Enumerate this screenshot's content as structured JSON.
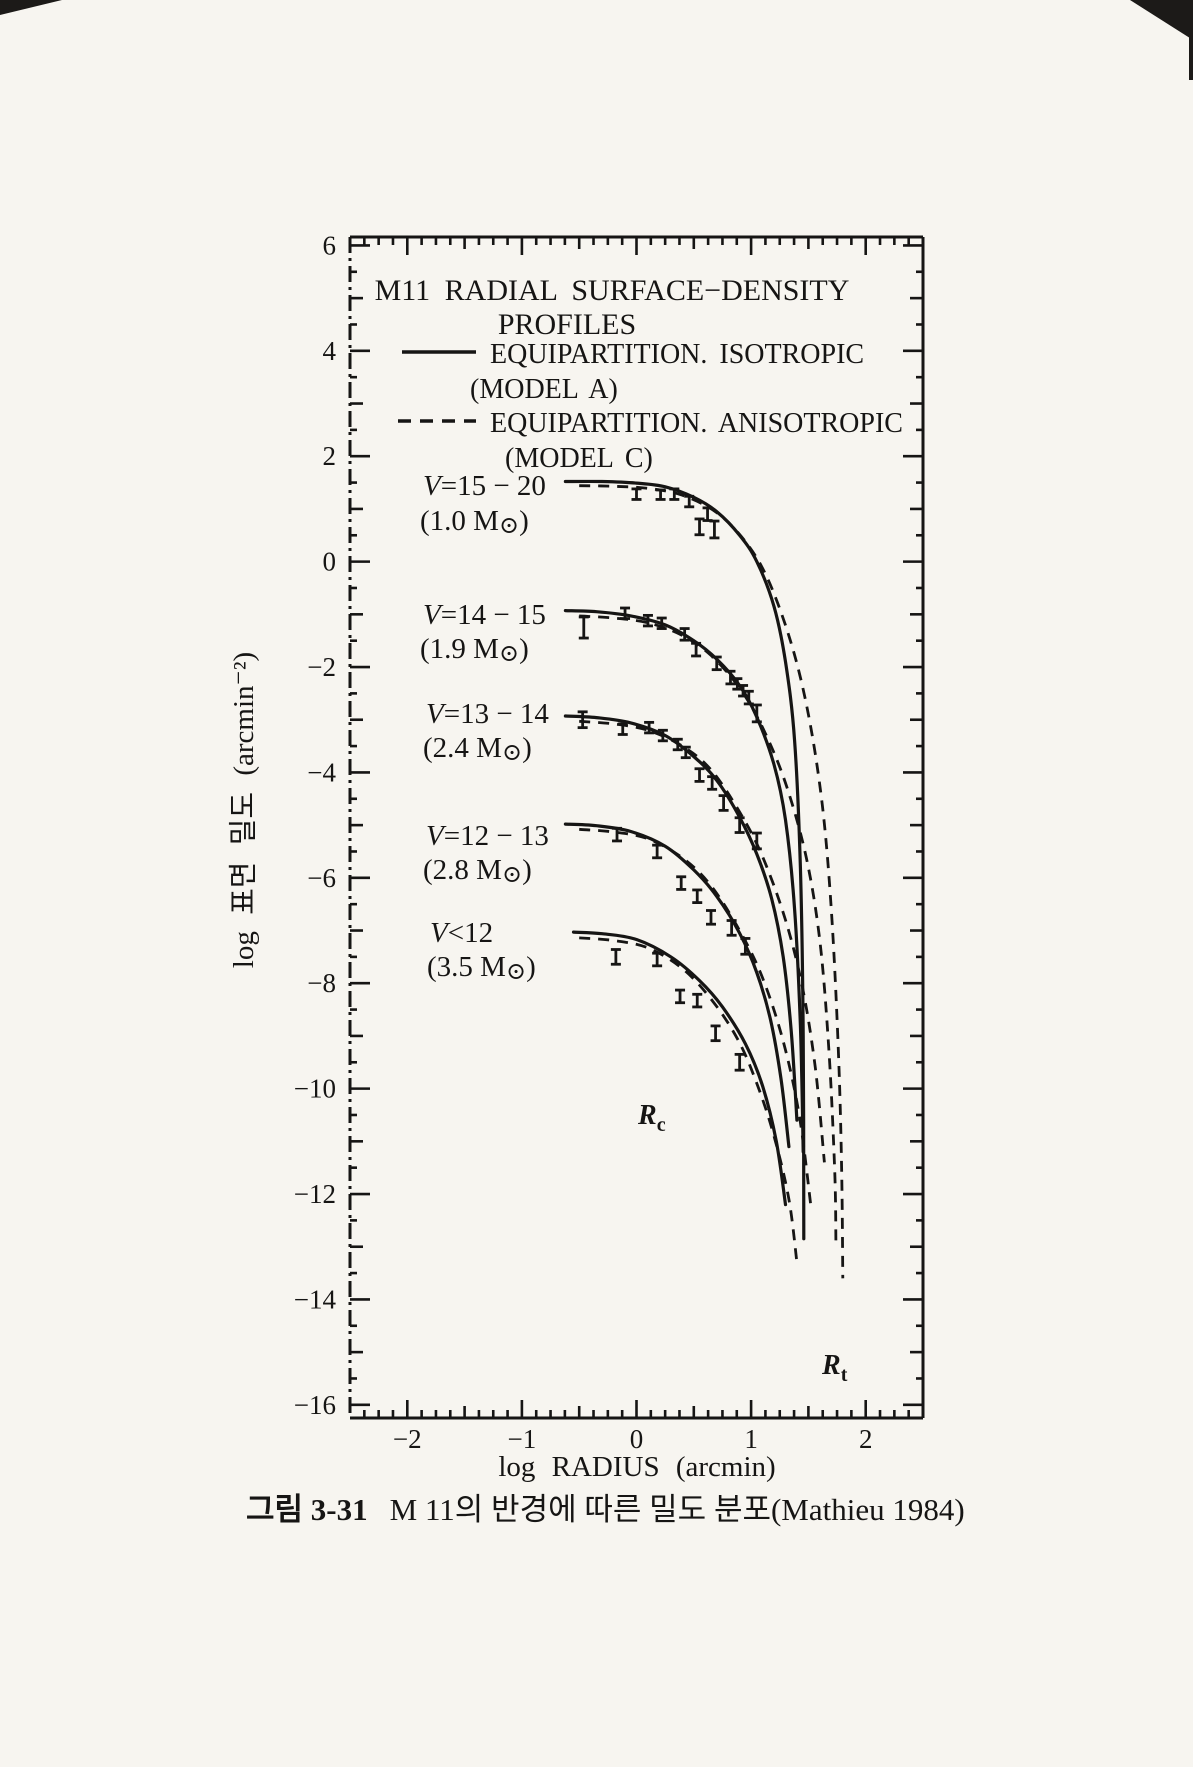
{
  "page": {
    "caption_prefix": "그림 3-31",
    "caption_text": "M 11의 반경에 따른 밀도 분포(Mathieu 1984)"
  },
  "chart_data": {
    "type": "line",
    "title_line1": "M11 RADIAL SURFACE−DENSITY",
    "title_line2": "PROFILES",
    "legend": {
      "solid_label": "EQUIPARTITION. ISOTROPIC",
      "solid_sublabel": "(MODEL A)",
      "dashed_label": "EQUIPARTITION. ANISOTROPIC",
      "dashed_sublabel": "(MODEL C)"
    },
    "xlabel": "log RADIUS (arcmin)",
    "ylabel": "log 표면 밀도 (arcmin⁻²)",
    "xlim": [
      -2.5,
      2.5
    ],
    "ylim": [
      -16.25,
      6.16
    ],
    "x_major_ticks": [
      -2,
      -1,
      0,
      1,
      2
    ],
    "x_tick_labels": [
      "−2",
      "−1",
      "0",
      "1",
      "2"
    ],
    "y_major_ticks": [
      6,
      4,
      2,
      0,
      -2,
      -4,
      -6,
      -8,
      -10,
      -12,
      -14,
      -16
    ],
    "y_tick_labels": [
      "6",
      "4",
      "2",
      "0",
      "−2",
      "−4",
      "−6",
      "−8",
      "−10",
      "−12",
      "−14",
      "−16"
    ],
    "grid": false,
    "legend_position": "upper-left-inside",
    "annotations": {
      "core_radius": {
        "main": "R",
        "sub": "c"
      },
      "tidal_radius": {
        "main": "R",
        "sub": "t"
      }
    },
    "profiles": [
      {
        "v": "V",
        "range": "=15 − 20",
        "mass_pre": "(1.0 M",
        "mass_sun": "⊙",
        "mass_post": ")",
        "model_a": [
          [
            -0.62,
            1.52
          ],
          [
            -0.3,
            1.52
          ],
          [
            0.0,
            1.49
          ],
          [
            0.25,
            1.42
          ],
          [
            0.5,
            1.22
          ],
          [
            0.7,
            0.95
          ],
          [
            0.9,
            0.5
          ],
          [
            1.05,
            0.0
          ],
          [
            1.2,
            -0.85
          ],
          [
            1.3,
            -1.9
          ],
          [
            1.38,
            -3.4
          ],
          [
            1.43,
            -5.8
          ],
          [
            1.455,
            -9.0
          ],
          [
            1.46,
            -12.85
          ]
        ],
        "model_c": [
          [
            -0.5,
            1.44
          ],
          [
            -0.2,
            1.43
          ],
          [
            0.1,
            1.39
          ],
          [
            0.4,
            1.26
          ],
          [
            0.7,
            0.93
          ],
          [
            0.95,
            0.38
          ],
          [
            1.15,
            -0.35
          ],
          [
            1.35,
            -1.55
          ],
          [
            1.5,
            -2.9
          ],
          [
            1.62,
            -4.6
          ],
          [
            1.7,
            -6.6
          ],
          [
            1.76,
            -9.2
          ],
          [
            1.79,
            -11.5
          ],
          [
            1.8,
            -13.6
          ]
        ],
        "points": [
          [
            0.0,
            1.28,
            0.1
          ],
          [
            0.21,
            1.27,
            0.09
          ],
          [
            0.33,
            1.28,
            0.1
          ],
          [
            0.46,
            1.14,
            0.1
          ],
          [
            0.55,
            0.66,
            0.15
          ],
          [
            0.62,
            0.9,
            0.12
          ],
          [
            0.68,
            0.61,
            0.16
          ]
        ]
      },
      {
        "v": "V",
        "range": "=14 − 15",
        "mass_pre": "(1.9 M",
        "mass_sun": "⊙",
        "mass_post": ")",
        "model_a": [
          [
            -0.62,
            -0.93
          ],
          [
            -0.35,
            -0.95
          ],
          [
            -0.05,
            -1.03
          ],
          [
            0.25,
            -1.2
          ],
          [
            0.5,
            -1.5
          ],
          [
            0.7,
            -1.85
          ],
          [
            0.9,
            -2.35
          ],
          [
            1.05,
            -2.95
          ],
          [
            1.2,
            -3.85
          ],
          [
            1.3,
            -4.9
          ],
          [
            1.38,
            -6.6
          ],
          [
            1.43,
            -8.8
          ],
          [
            1.455,
            -11.2
          ]
        ],
        "model_c": [
          [
            -0.5,
            -1.03
          ],
          [
            -0.2,
            -1.07
          ],
          [
            0.1,
            -1.16
          ],
          [
            0.4,
            -1.4
          ],
          [
            0.65,
            -1.78
          ],
          [
            0.9,
            -2.4
          ],
          [
            1.1,
            -3.15
          ],
          [
            1.3,
            -4.2
          ],
          [
            1.48,
            -5.6
          ],
          [
            1.6,
            -7.2
          ],
          [
            1.68,
            -9.3
          ],
          [
            1.73,
            -11.6
          ],
          [
            1.74,
            -12.9
          ]
        ],
        "points": [
          [
            -0.46,
            -1.25,
            0.2
          ],
          [
            -0.1,
            -0.98,
            0.1
          ],
          [
            0.1,
            -1.12,
            0.1
          ],
          [
            0.22,
            -1.17,
            0.1
          ],
          [
            0.42,
            -1.38,
            0.11
          ],
          [
            0.52,
            -1.67,
            0.12
          ],
          [
            0.7,
            -1.93,
            0.12
          ],
          [
            0.82,
            -2.2,
            0.12
          ],
          [
            0.88,
            -2.32,
            0.1
          ],
          [
            0.93,
            -2.45,
            0.1
          ],
          [
            0.98,
            -2.58,
            0.12
          ],
          [
            1.05,
            -2.88,
            0.16
          ]
        ]
      },
      {
        "v": "V",
        "range": "=13 − 14",
        "mass_pre": "(2.4 M",
        "mass_sun": "⊙",
        "mass_post": ")",
        "model_a": [
          [
            -0.62,
            -2.93
          ],
          [
            -0.35,
            -2.96
          ],
          [
            -0.05,
            -3.06
          ],
          [
            0.25,
            -3.3
          ],
          [
            0.5,
            -3.7
          ],
          [
            0.7,
            -4.15
          ],
          [
            0.9,
            -4.85
          ],
          [
            1.05,
            -5.55
          ],
          [
            1.18,
            -6.4
          ],
          [
            1.28,
            -7.5
          ],
          [
            1.35,
            -8.9
          ],
          [
            1.4,
            -10.6
          ]
        ],
        "model_c": [
          [
            -0.5,
            -3.03
          ],
          [
            -0.2,
            -3.08
          ],
          [
            0.1,
            -3.2
          ],
          [
            0.4,
            -3.5
          ],
          [
            0.65,
            -3.95
          ],
          [
            0.9,
            -4.75
          ],
          [
            1.1,
            -5.6
          ],
          [
            1.3,
            -6.8
          ],
          [
            1.45,
            -8.1
          ],
          [
            1.56,
            -9.6
          ],
          [
            1.64,
            -11.4
          ]
        ],
        "points": [
          [
            -0.47,
            -3.0,
            0.15
          ],
          [
            -0.12,
            -3.18,
            0.1
          ],
          [
            0.11,
            -3.15,
            0.1
          ],
          [
            0.23,
            -3.3,
            0.1
          ],
          [
            0.36,
            -3.47,
            0.1
          ],
          [
            0.43,
            -3.62,
            0.1
          ],
          [
            0.55,
            -4.05,
            0.12
          ],
          [
            0.66,
            -4.2,
            0.12
          ],
          [
            0.76,
            -4.58,
            0.14
          ],
          [
            0.9,
            -5.0,
            0.14
          ],
          [
            1.05,
            -5.3,
            0.15
          ]
        ]
      },
      {
        "v": "V",
        "range": "=12 − 13",
        "mass_pre": "(2.8 M",
        "mass_sun": "⊙",
        "mass_post": ")",
        "model_a": [
          [
            -0.62,
            -4.98
          ],
          [
            -0.35,
            -5.01
          ],
          [
            -0.05,
            -5.12
          ],
          [
            0.25,
            -5.4
          ],
          [
            0.5,
            -5.85
          ],
          [
            0.7,
            -6.35
          ],
          [
            0.9,
            -7.05
          ],
          [
            1.05,
            -7.8
          ],
          [
            1.17,
            -8.7
          ],
          [
            1.26,
            -9.8
          ],
          [
            1.33,
            -11.1
          ]
        ],
        "model_c": [
          [
            -0.5,
            -5.08
          ],
          [
            -0.2,
            -5.13
          ],
          [
            0.1,
            -5.26
          ],
          [
            0.4,
            -5.62
          ],
          [
            0.65,
            -6.15
          ],
          [
            0.9,
            -7.0
          ],
          [
            1.1,
            -7.9
          ],
          [
            1.28,
            -9.1
          ],
          [
            1.42,
            -10.5
          ],
          [
            1.52,
            -12.2
          ]
        ],
        "points": [
          [
            -0.17,
            -5.18,
            0.12
          ],
          [
            0.18,
            -5.5,
            0.12
          ],
          [
            0.39,
            -6.1,
            0.12
          ],
          [
            0.53,
            -6.35,
            0.12
          ],
          [
            0.65,
            -6.75,
            0.13
          ],
          [
            0.83,
            -6.95,
            0.14
          ],
          [
            0.95,
            -7.3,
            0.15
          ]
        ]
      },
      {
        "v": "V",
        "range": "<12",
        "mass_pre": "(3.5 M",
        "mass_sun": "⊙",
        "mass_post": ")",
        "model_a": [
          [
            -0.55,
            -7.03
          ],
          [
            -0.3,
            -7.06
          ],
          [
            0.0,
            -7.17
          ],
          [
            0.3,
            -7.5
          ],
          [
            0.55,
            -7.95
          ],
          [
            0.75,
            -8.45
          ],
          [
            0.95,
            -9.15
          ],
          [
            1.1,
            -9.95
          ],
          [
            1.22,
            -11.0
          ],
          [
            1.3,
            -12.2
          ]
        ],
        "model_c": [
          [
            -0.5,
            -7.14
          ],
          [
            -0.2,
            -7.19
          ],
          [
            0.1,
            -7.33
          ],
          [
            0.4,
            -7.72
          ],
          [
            0.65,
            -8.3
          ],
          [
            0.88,
            -9.05
          ],
          [
            1.05,
            -9.9
          ],
          [
            1.2,
            -10.9
          ],
          [
            1.33,
            -12.1
          ],
          [
            1.4,
            -13.3
          ]
        ],
        "points": [
          [
            -0.18,
            -7.5,
            0.14
          ],
          [
            0.18,
            -7.55,
            0.12
          ],
          [
            0.38,
            -8.25,
            0.12
          ],
          [
            0.53,
            -8.33,
            0.12
          ],
          [
            0.69,
            -8.95,
            0.14
          ],
          [
            0.9,
            -9.5,
            0.15
          ]
        ]
      }
    ]
  }
}
